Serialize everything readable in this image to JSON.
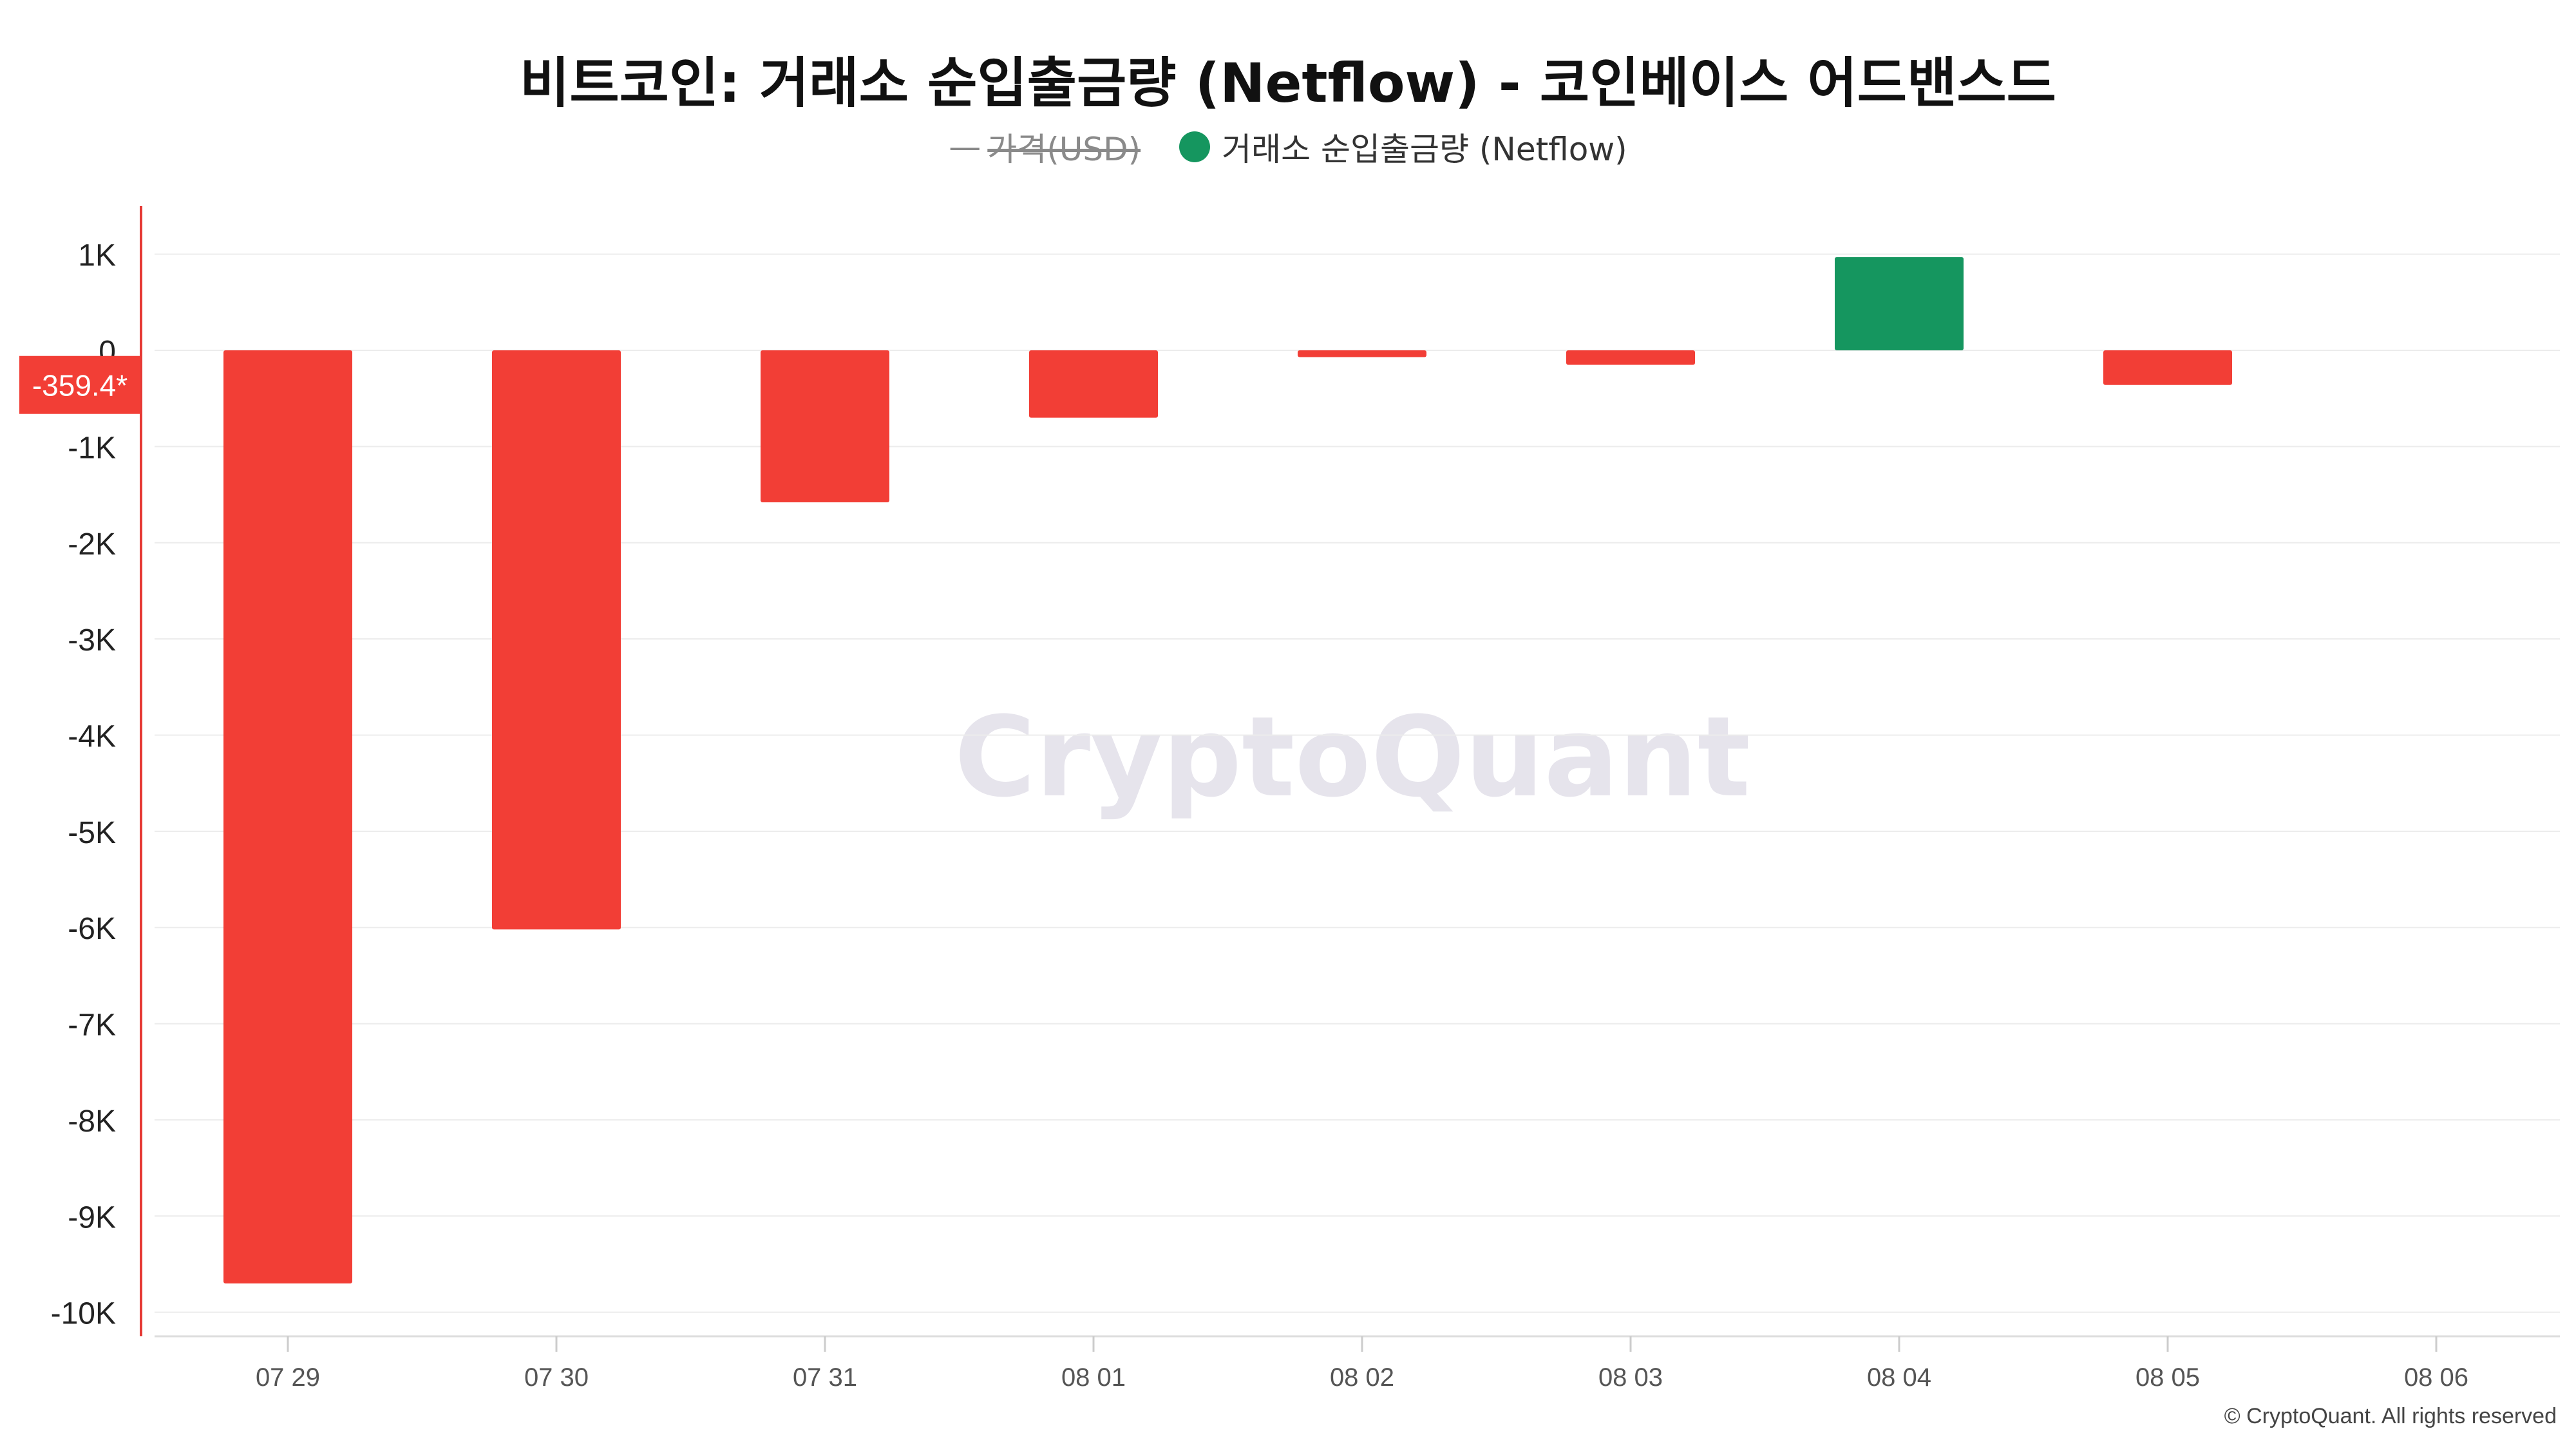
{
  "chart_data": {
    "type": "bar",
    "title": "비트코인: 거래소 순입출금량 (Netflow) - 코인베이스 어드밴스드",
    "legend": [
      {
        "label": "가격(USD)",
        "hidden": true,
        "color": "#888888"
      },
      {
        "label": "거래소 순입출금량 (Netflow)",
        "hidden": false,
        "color": "#15965f"
      }
    ],
    "categories": [
      "07 29",
      "07 30",
      "07 31",
      "08 01",
      "08 02",
      "08 03",
      "08 04",
      "08 05",
      "08 06"
    ],
    "series": [
      {
        "name": "거래소 순입출금량 (Netflow)",
        "values": [
          -9700,
          -6020,
          -1580,
          -700,
          -70,
          -150,
          970,
          -359.4,
          null
        ]
      }
    ],
    "y_ticks": [
      {
        "value": 1000,
        "label": "1K"
      },
      {
        "value": 0,
        "label": "0"
      },
      {
        "value": -1000,
        "label": "-1K"
      },
      {
        "value": -2000,
        "label": "-2K"
      },
      {
        "value": -3000,
        "label": "-3K"
      },
      {
        "value": -4000,
        "label": "-4K"
      },
      {
        "value": -5000,
        "label": "-5K"
      },
      {
        "value": -6000,
        "label": "-6K"
      },
      {
        "value": -7000,
        "label": "-7K"
      },
      {
        "value": -8000,
        "label": "-8K"
      },
      {
        "value": -9000,
        "label": "-9K"
      },
      {
        "value": -10000,
        "label": "-10K"
      }
    ],
    "ylim": [
      -10250,
      1500
    ],
    "current_value_label": "-359.4*",
    "current_value": -359.4,
    "colors": {
      "positive": "#15965f",
      "negative": "#f23e36",
      "axis": "#e53935",
      "grid": "#ececec"
    },
    "grid": true,
    "legend_position": "top-center",
    "watermark": "CryptoQuant",
    "copyright": "© CryptoQuant. All rights reserved"
  }
}
